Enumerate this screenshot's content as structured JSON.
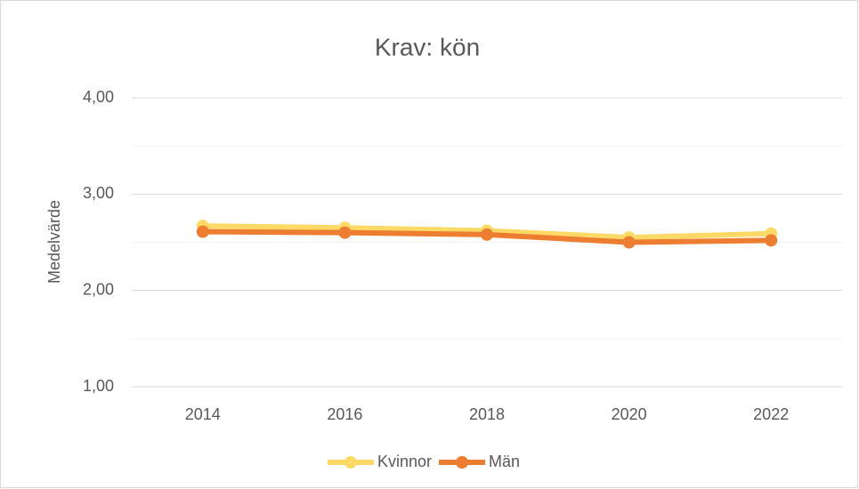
{
  "chart_data": {
    "type": "line",
    "title": "Krav: kön",
    "ylabel": "Medelvärde",
    "categories": [
      "2014",
      "2016",
      "2018",
      "2020",
      "2022"
    ],
    "series": [
      {
        "name": "Kvinnor",
        "color": "#ffd966",
        "values": [
          2.67,
          2.65,
          2.62,
          2.55,
          2.59
        ]
      },
      {
        "name": "Män",
        "color": "#ed7d31",
        "values": [
          2.61,
          2.6,
          2.58,
          2.5,
          2.52
        ]
      }
    ],
    "ylim": [
      1,
      4
    ],
    "yticks": [
      {
        "value": 1,
        "label": "1,00"
      },
      {
        "value": 2,
        "label": "2,00"
      },
      {
        "value": 3,
        "label": "3,00"
      },
      {
        "value": 4,
        "label": "4,00"
      }
    ],
    "minor_yticks": [
      1.5,
      2.5,
      3.5
    ],
    "grid": true,
    "legend": "bottom"
  }
}
